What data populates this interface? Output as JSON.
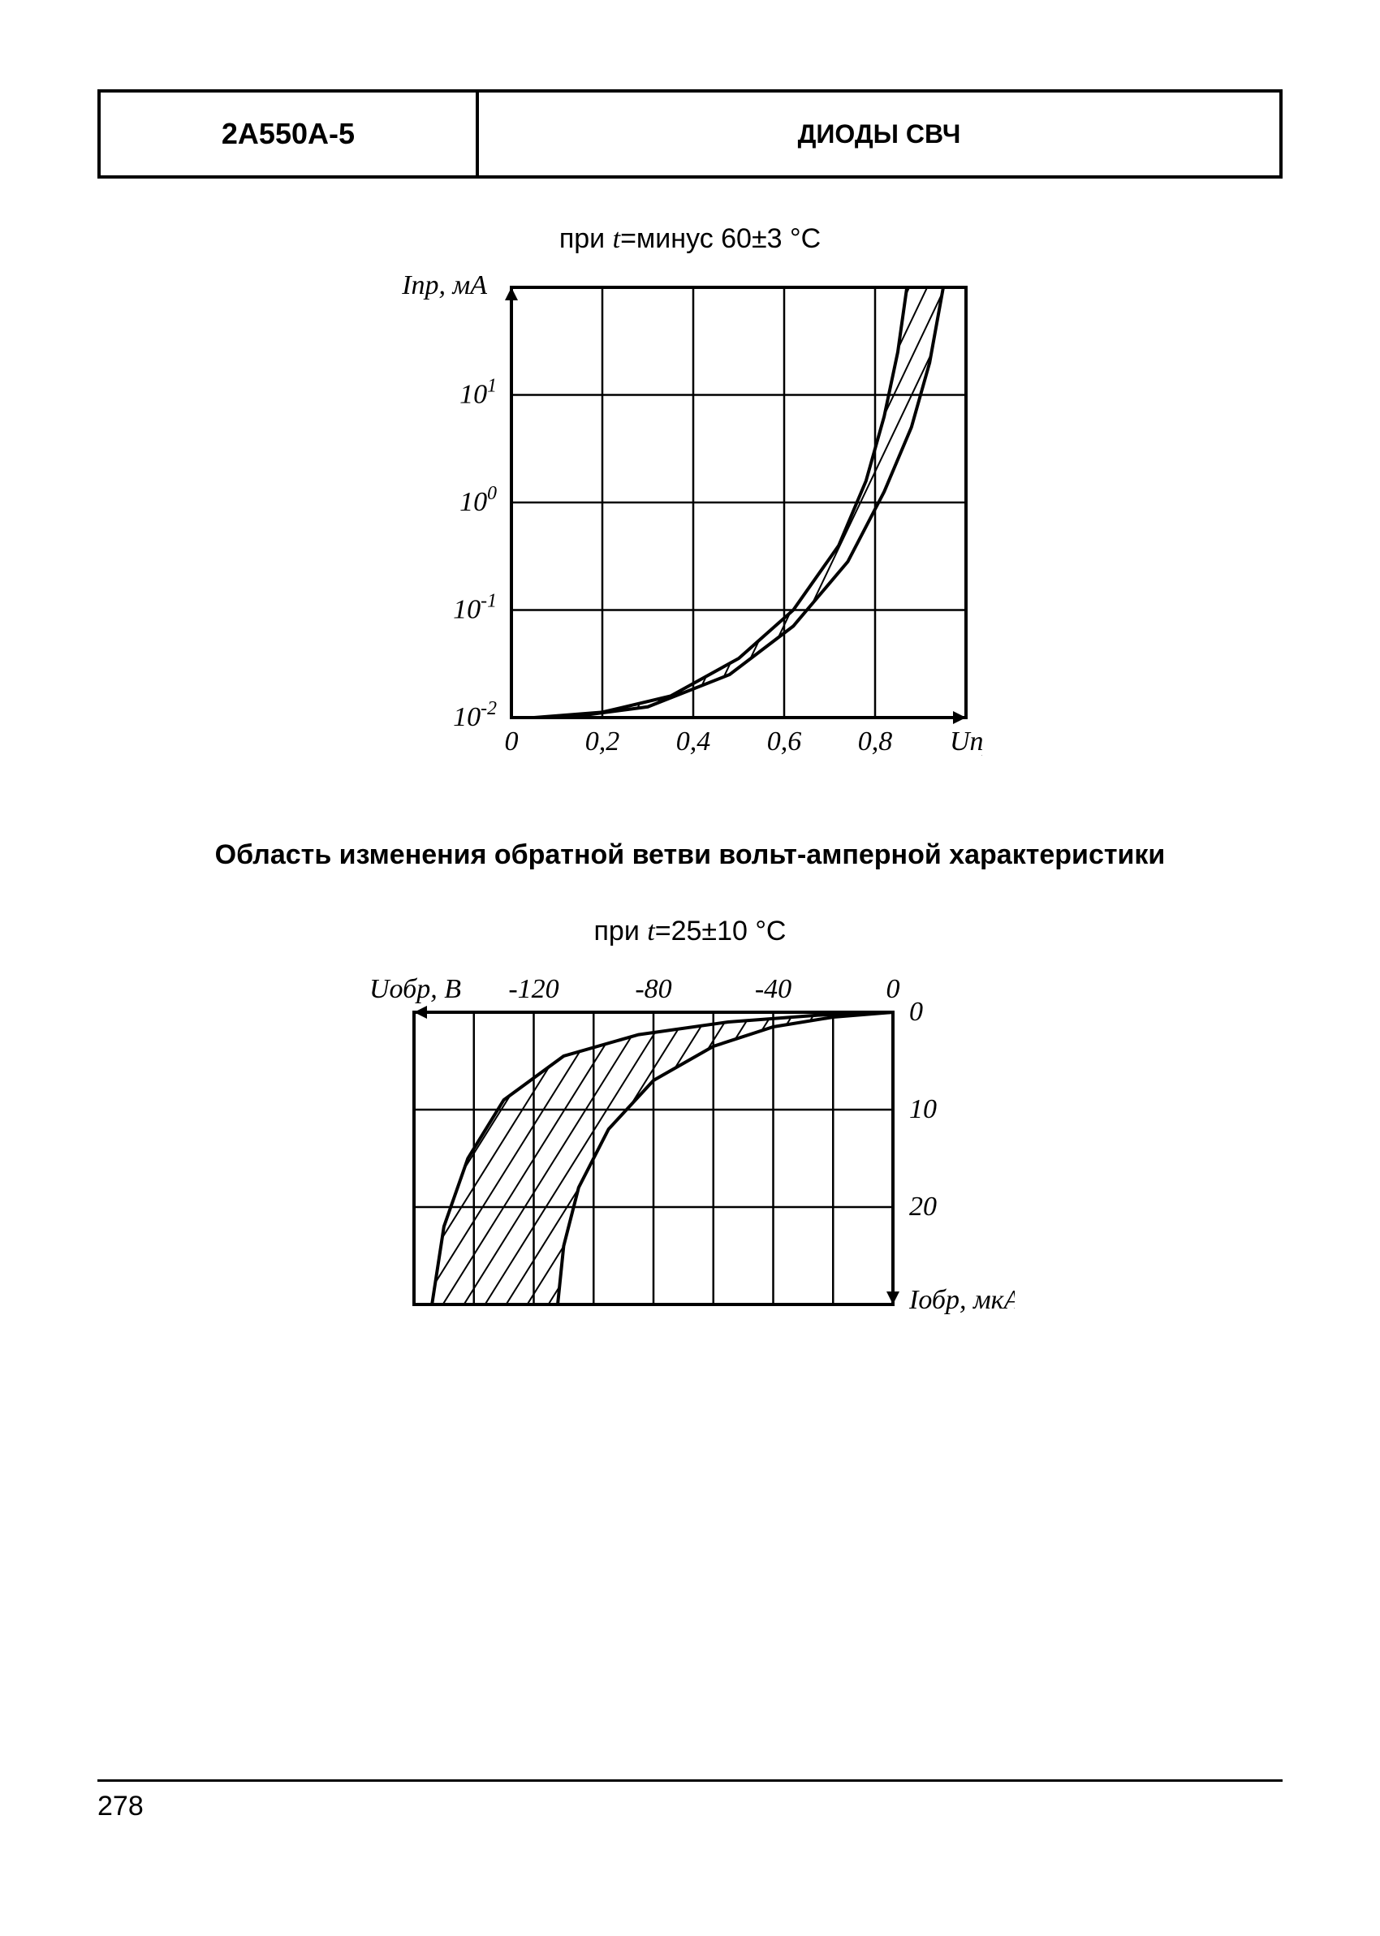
{
  "header": {
    "left": "2А550А-5",
    "right": "ДИОДЫ СВЧ"
  },
  "chart1": {
    "type": "line-band",
    "caption": "при t=минус 60±3 °C",
    "caption_italic_char": "t",
    "y_label": "Iпр, мА",
    "x_label": "Uпр, В",
    "x_ticks": [
      "0",
      "0,2",
      "0,4",
      "0,6",
      "0,8"
    ],
    "y_ticks": [
      "10⁻²",
      "10⁻¹",
      "10⁰",
      "10¹"
    ],
    "y_tick_exponents": [
      "-2",
      "-1",
      "0",
      "1"
    ],
    "xlim": [
      0,
      1.0
    ],
    "ylim_log": [
      -2,
      2
    ],
    "grid_color": "#000000",
    "line_color": "#000000",
    "background_color": "#ffffff",
    "line_width": 4,
    "grid_width": 2.5,
    "fontsize_ticks": 34,
    "lower_curve": [
      [
        0.05,
        -2.0
      ],
      [
        0.2,
        -1.95
      ],
      [
        0.35,
        -1.8
      ],
      [
        0.5,
        -1.45
      ],
      [
        0.62,
        -1.0
      ],
      [
        0.72,
        -0.4
      ],
      [
        0.78,
        0.2
      ],
      [
        0.82,
        0.8
      ],
      [
        0.85,
        1.4
      ],
      [
        0.87,
        2.0
      ]
    ],
    "upper_curve": [
      [
        0.12,
        -2.0
      ],
      [
        0.3,
        -1.9
      ],
      [
        0.48,
        -1.6
      ],
      [
        0.62,
        -1.15
      ],
      [
        0.74,
        -0.55
      ],
      [
        0.82,
        0.1
      ],
      [
        0.88,
        0.7
      ],
      [
        0.92,
        1.3
      ],
      [
        0.95,
        2.0
      ]
    ]
  },
  "section_heading": "Область изменения обратной ветви вольт-амперной характеристики",
  "chart2": {
    "type": "line-band",
    "caption": "при t=25±10 °C",
    "caption_italic_char": "t",
    "x_label": "Uобр, В",
    "y_label": "Iобр, мкА",
    "x_ticks": [
      "-120",
      "-80",
      "-40",
      "0"
    ],
    "y_ticks": [
      "0",
      "10",
      "20"
    ],
    "xlim": [
      -160,
      0
    ],
    "ylim": [
      0,
      30
    ],
    "grid_color": "#000000",
    "line_color": "#000000",
    "background_color": "#ffffff",
    "line_width": 4,
    "grid_width": 2.5,
    "fontsize_ticks": 34,
    "upper_curve_rev": [
      [
        0,
        0
      ],
      [
        -20,
        0.5
      ],
      [
        -40,
        1.5
      ],
      [
        -60,
        3.5
      ],
      [
        -80,
        7
      ],
      [
        -95,
        12
      ],
      [
        -105,
        18
      ],
      [
        -110,
        24
      ],
      [
        -112,
        30
      ]
    ],
    "lower_curve_rev": [
      [
        0,
        0
      ],
      [
        -25,
        0.3
      ],
      [
        -55,
        1.0
      ],
      [
        -85,
        2.3
      ],
      [
        -110,
        4.5
      ],
      [
        -130,
        9
      ],
      [
        -142,
        15
      ],
      [
        -150,
        22
      ],
      [
        -154,
        30
      ]
    ]
  },
  "page_number": "278"
}
